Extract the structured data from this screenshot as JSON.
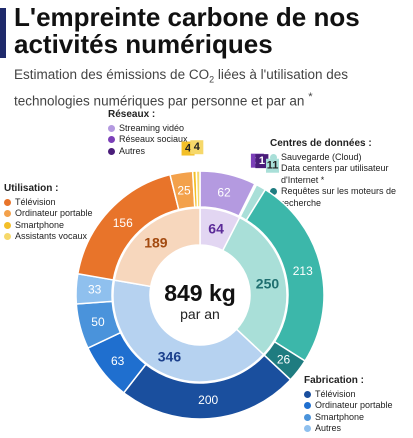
{
  "title": "L'empreinte carbone de nos activités numériques",
  "subtitle_parts": {
    "before": "Estimation des émissions de CO",
    "sub": "2",
    "after": " liées à l'utilisation des technologies numériques par personne et par an",
    "note": "*"
  },
  "center": {
    "value": "849 kg",
    "unit": "par an"
  },
  "colors": {
    "reseaux": "#8c5bbf",
    "centres": "#2bb3a4",
    "utilisation": "#e8742a",
    "fabrication": "#1a55b0"
  },
  "chart_data": {
    "type": "sunburst",
    "total": 849,
    "unit": "kg CO2 par an",
    "groups": [
      {
        "name": "Réseaux",
        "total": 64,
        "color": "#8c5bbf",
        "inner_color": "#e2d6f2",
        "items": [
          {
            "name": "Streaming vidéo",
            "value": 62,
            "color": "#b49ae0"
          },
          {
            "name": "Réseaux sociaux",
            "value": 1,
            "color": "#7b3fb8"
          },
          {
            "name": "Autres",
            "value": 1,
            "color": "#4a1d7a"
          }
        ]
      },
      {
        "name": "Centres de données",
        "total": 250,
        "color": "#2bb3a4",
        "inner_color": "#a9dfd8",
        "items": [
          {
            "name": "Sauvegarde (Cloud)",
            "value": 11,
            "color": "#a9dfd8"
          },
          {
            "name": "Data centers par utilisateur d'Internet *",
            "value": 213,
            "color": "#3cb7aa"
          },
          {
            "name": "Requêtes sur les moteurs de recherche",
            "value": 26,
            "color": "#1f7c80"
          }
        ]
      },
      {
        "name": "Fabrication",
        "total": 346,
        "color": "#1a55b0",
        "inner_color": "#b6d2f0",
        "items": [
          {
            "name": "Télévision",
            "value": 200,
            "color": "#1a4f9e"
          },
          {
            "name": "Ordinateur portable",
            "value": 63,
            "color": "#1f6fcf"
          },
          {
            "name": "Smartphone",
            "value": 50,
            "color": "#4a93db"
          },
          {
            "name": "Autres",
            "value": 33,
            "color": "#8fc0ee"
          }
        ]
      },
      {
        "name": "Utilisation",
        "total": 189,
        "color": "#e8742a",
        "inner_color": "#f7d7bd",
        "items": [
          {
            "name": "Télévision",
            "value": 156,
            "color": "#e8742a"
          },
          {
            "name": "Ordinateur portable",
            "value": 25,
            "color": "#f3a14b"
          },
          {
            "name": "Smartphone",
            "value": 4,
            "color": "#f3bf28"
          },
          {
            "name": "Assistants vocaux",
            "value": 4,
            "color": "#f6d86a"
          }
        ]
      }
    ]
  },
  "legends": {
    "reseaux": {
      "heading": "Réseaux :",
      "items": [
        "Streaming vidéo",
        "Réseaux sociaux",
        "Autres"
      ]
    },
    "centres": {
      "heading": "Centres de données :",
      "items": [
        "Sauvegarde (Cloud)",
        "Data centers par utilisateur d'Internet *",
        "Requêtes sur les moteurs de recherche"
      ]
    },
    "utilisation": {
      "heading": "Utilisation :",
      "items": [
        "Télévision",
        "Ordinateur portable",
        "Smartphone",
        "Assistants vocaux"
      ]
    },
    "fabrication": {
      "heading": "Fabrication :",
      "items": [
        "Télévision",
        "Ordinateur portable",
        "Smartphone",
        "Autres"
      ]
    }
  }
}
